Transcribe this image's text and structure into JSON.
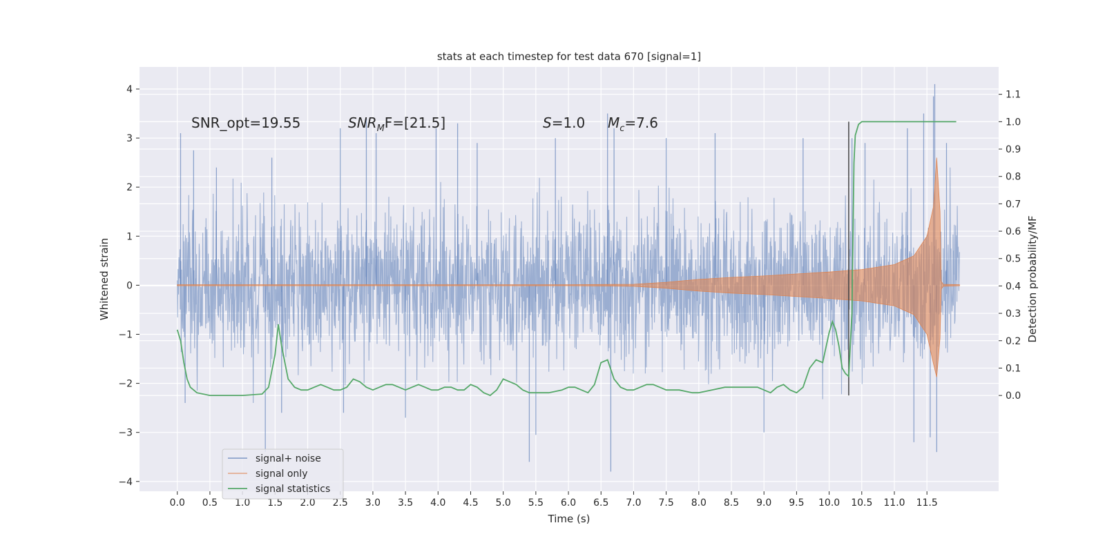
{
  "chart_data": {
    "type": "line",
    "title": "stats at each timestep for test data 670 [signal=1]",
    "xlabel": "Time (s)",
    "ylabel": "Whitened strain",
    "ylabel_right": "Detection probability/MF",
    "xlim": [
      -0.58,
      12.6
    ],
    "ylim": [
      -4.2,
      4.45
    ],
    "ylim_right": [
      -0.35,
      1.2
    ],
    "x_ticks": [
      "0.0",
      "0.5",
      "1.0",
      "1.5",
      "2.0",
      "2.5",
      "3.0",
      "3.5",
      "4.0",
      "4.5",
      "5.0",
      "5.5",
      "6.0",
      "6.5",
      "7.0",
      "7.5",
      "8.0",
      "8.5",
      "9.0",
      "9.5",
      "10.0",
      "10.5",
      "11.0",
      "11.5"
    ],
    "y_ticks": [
      "-4",
      "-3",
      "-2",
      "-1",
      "0",
      "1",
      "2",
      "3",
      "4"
    ],
    "y_ticks_right": [
      "0.0",
      "0.1",
      "0.2",
      "0.3",
      "0.4",
      "0.5",
      "0.6",
      "0.7",
      "0.8",
      "0.9",
      "1.0",
      "1.1"
    ],
    "grid": true,
    "legend_position": "lower-left",
    "background_color": "#eaeaf2",
    "annotations": {
      "snr_opt": "SNR_opt=19.55",
      "snr_mf_main": "SNR",
      "snr_mf_sub": "M",
      "snr_mf_rest": "F=[21.5]",
      "s_italic": "S",
      "s_value": "=1.0",
      "mc_italic": "M",
      "mc_sub": "c",
      "mc_value": "=7.6"
    },
    "vertical_marker": {
      "x": 10.3,
      "color": "#444444"
    },
    "series": [
      {
        "name": "signal+ noise",
        "color": "#4c72b0",
        "opacity": 0.5,
        "x_range": [
          0.0,
          12.0
        ],
        "typical_amplitude": 1.0,
        "peaks": [
          {
            "x": 0.05,
            "y": 3.1
          },
          {
            "x": 0.12,
            "y": -2.4
          },
          {
            "x": 0.25,
            "y": 2.75
          },
          {
            "x": 0.6,
            "y": 2.4
          },
          {
            "x": 1.35,
            "y": -3.4
          },
          {
            "x": 1.45,
            "y": 2.6
          },
          {
            "x": 1.6,
            "y": -2.6
          },
          {
            "x": 2.5,
            "y": 3.2
          },
          {
            "x": 2.55,
            "y": -2.6
          },
          {
            "x": 2.9,
            "y": 3.4
          },
          {
            "x": 3.05,
            "y": 3.1
          },
          {
            "x": 3.5,
            "y": -2.7
          },
          {
            "x": 3.97,
            "y": 3.2
          },
          {
            "x": 4.3,
            "y": 3.3
          },
          {
            "x": 4.6,
            "y": 2.9
          },
          {
            "x": 5.4,
            "y": -3.6
          },
          {
            "x": 5.5,
            "y": -3.05
          },
          {
            "x": 5.8,
            "y": 3.0
          },
          {
            "x": 6.6,
            "y": 3.5
          },
          {
            "x": 6.65,
            "y": -3.8
          },
          {
            "x": 6.7,
            "y": 3.2
          },
          {
            "x": 7.5,
            "y": 3.0
          },
          {
            "x": 8.25,
            "y": 3.1
          },
          {
            "x": 9.0,
            "y": -3.0
          },
          {
            "x": 9.6,
            "y": 3.0
          },
          {
            "x": 10.35,
            "y": 3.0
          },
          {
            "x": 10.55,
            "y": 2.9
          },
          {
            "x": 11.2,
            "y": 3.2
          },
          {
            "x": 11.3,
            "y": -3.2
          },
          {
            "x": 11.45,
            "y": 3.5
          },
          {
            "x": 11.55,
            "y": -3.1
          },
          {
            "x": 11.6,
            "y": 3.85
          },
          {
            "x": 11.62,
            "y": 4.1
          },
          {
            "x": 11.65,
            "y": -3.4
          },
          {
            "x": 11.8,
            "y": 2.9
          }
        ]
      },
      {
        "name": "signal only",
        "color": "#dd8452",
        "opacity": 0.6,
        "x": [
          0.0,
          6.0,
          7.0,
          7.5,
          8.0,
          8.5,
          9.0,
          9.5,
          10.0,
          10.5,
          11.0,
          11.3,
          11.5,
          11.6,
          11.65,
          11.7,
          11.72,
          11.75,
          12.0
        ],
        "envelope": [
          0.01,
          0.01,
          0.02,
          0.06,
          0.12,
          0.16,
          0.19,
          0.23,
          0.27,
          0.32,
          0.42,
          0.6,
          1.0,
          1.6,
          2.6,
          1.5,
          0.08,
          0.02,
          0.01
        ]
      },
      {
        "name": "signal statistics",
        "color": "#55a868",
        "axis": "right",
        "x": [
          0.0,
          0.05,
          0.1,
          0.15,
          0.2,
          0.3,
          0.5,
          0.8,
          1.0,
          1.3,
          1.4,
          1.5,
          1.55,
          1.6,
          1.7,
          1.8,
          1.9,
          2.0,
          2.1,
          2.2,
          2.3,
          2.4,
          2.5,
          2.6,
          2.7,
          2.8,
          2.9,
          3.0,
          3.1,
          3.2,
          3.3,
          3.4,
          3.5,
          3.6,
          3.7,
          3.8,
          3.9,
          4.0,
          4.1,
          4.2,
          4.3,
          4.4,
          4.5,
          4.6,
          4.7,
          4.8,
          4.9,
          5.0,
          5.1,
          5.2,
          5.3,
          5.4,
          5.5,
          5.7,
          5.9,
          6.0,
          6.1,
          6.2,
          6.3,
          6.4,
          6.5,
          6.6,
          6.7,
          6.8,
          6.9,
          7.0,
          7.1,
          7.2,
          7.3,
          7.4,
          7.5,
          7.7,
          7.9,
          8.0,
          8.2,
          8.4,
          8.5,
          8.7,
          8.9,
          9.0,
          9.1,
          9.2,
          9.3,
          9.4,
          9.5,
          9.6,
          9.7,
          9.8,
          9.9,
          10.0,
          10.05,
          10.1,
          10.15,
          10.2,
          10.25,
          10.3,
          10.35,
          10.38,
          10.4,
          10.45,
          10.5,
          11.0,
          11.5,
          11.95
        ],
        "values": [
          0.24,
          0.2,
          0.12,
          0.06,
          0.03,
          0.01,
          0.0,
          0.0,
          0.0,
          0.005,
          0.03,
          0.15,
          0.26,
          0.18,
          0.06,
          0.03,
          0.02,
          0.02,
          0.03,
          0.04,
          0.03,
          0.02,
          0.02,
          0.03,
          0.06,
          0.05,
          0.03,
          0.02,
          0.03,
          0.04,
          0.04,
          0.03,
          0.02,
          0.03,
          0.04,
          0.03,
          0.02,
          0.02,
          0.03,
          0.03,
          0.02,
          0.02,
          0.04,
          0.03,
          0.01,
          0.0,
          0.02,
          0.06,
          0.05,
          0.04,
          0.02,
          0.01,
          0.01,
          0.01,
          0.02,
          0.03,
          0.03,
          0.02,
          0.01,
          0.04,
          0.12,
          0.13,
          0.06,
          0.03,
          0.02,
          0.02,
          0.03,
          0.04,
          0.04,
          0.03,
          0.02,
          0.02,
          0.01,
          0.01,
          0.02,
          0.03,
          0.03,
          0.03,
          0.03,
          0.02,
          0.01,
          0.03,
          0.04,
          0.02,
          0.01,
          0.03,
          0.1,
          0.13,
          0.12,
          0.23,
          0.27,
          0.24,
          0.18,
          0.1,
          0.08,
          0.07,
          0.3,
          0.85,
          0.95,
          0.99,
          1.0,
          1.0,
          1.0,
          1.0
        ]
      }
    ]
  }
}
